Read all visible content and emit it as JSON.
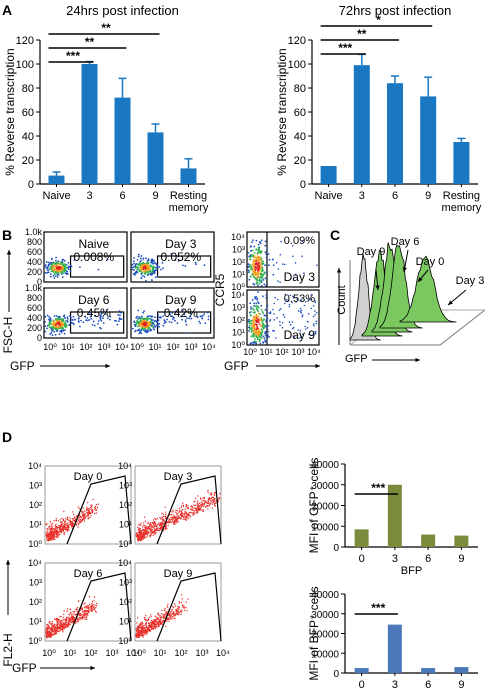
{
  "panels": {
    "A": "A",
    "B": "B",
    "C": "C",
    "D": "D"
  },
  "chart_data": [
    {
      "id": "A1",
      "type": "bar",
      "title": "24hrs post infection",
      "ylabel": "% Reverse transcription",
      "categories": [
        "Naive",
        "3",
        "6",
        "9",
        "Resting memory"
      ],
      "category_lines": [
        [
          "Naive"
        ],
        [
          "3"
        ],
        [
          "6"
        ],
        [
          "9"
        ],
        [
          "Resting",
          "memory"
        ]
      ],
      "values": [
        7,
        100,
        72,
        43,
        13
      ],
      "errors": [
        3,
        2,
        16,
        7,
        8
      ],
      "ylim": [
        0,
        120
      ],
      "yticks": [
        "0",
        "20",
        "40",
        "60",
        "80",
        "100",
        "120"
      ],
      "color": "#1a78c2",
      "significance": [
        {
          "from": 0,
          "to": 1,
          "label": "***"
        },
        {
          "from": 0,
          "to": 2,
          "label": "**"
        },
        {
          "from": 0,
          "to": 3,
          "label": "**"
        }
      ]
    },
    {
      "id": "A2",
      "type": "bar",
      "title": "72hrs post infection",
      "ylabel": "% Reverse transcription",
      "categories": [
        "Naive",
        "3",
        "6",
        "9",
        "Resting memory"
      ],
      "category_lines": [
        [
          "Naive"
        ],
        [
          "3"
        ],
        [
          "6"
        ],
        [
          "9"
        ],
        [
          "Resting",
          "memory"
        ]
      ],
      "values": [
        15,
        99,
        84,
        73,
        35
      ],
      "errors": [
        0,
        9,
        6,
        16,
        3
      ],
      "ylim": [
        0,
        120
      ],
      "yticks": [
        "0",
        "20",
        "40",
        "60",
        "80",
        "100",
        "120"
      ],
      "color": "#1a78c2",
      "significance": [
        {
          "from": 0,
          "to": 1,
          "label": "***"
        },
        {
          "from": 0,
          "to": 2,
          "label": "**"
        },
        {
          "from": 0,
          "to": 3,
          "label": "*"
        }
      ]
    },
    {
      "id": "B-left",
      "type": "scatter",
      "xlabel": "GFP",
      "ylabel": "FSC-H",
      "yticks": [
        "0",
        "200",
        "400",
        "600",
        "800",
        "1.0k"
      ],
      "xticks": [
        "10⁰",
        "10¹",
        "10²",
        "10³",
        "10⁴"
      ],
      "plots": [
        {
          "label": "Naive",
          "percent": "0.008%"
        },
        {
          "label": "Day 3",
          "percent": "0.052%"
        },
        {
          "label": "Day 6",
          "percent": "0.45%"
        },
        {
          "label": "Day 9",
          "percent": "0.42%"
        }
      ]
    },
    {
      "id": "B-right",
      "type": "scatter",
      "xlabel": "GFP",
      "ylabel": "CCR5",
      "yticks": [
        "10⁰",
        "10¹",
        "10²",
        "10³",
        "10⁴"
      ],
      "xticks": [
        "10⁰",
        "10¹",
        "10²",
        "10³",
        "10⁴"
      ],
      "plots": [
        {
          "label": "Day 3",
          "percent": "0.09%"
        },
        {
          "label": "Day 9",
          "percent": "0.53%"
        }
      ]
    },
    {
      "id": "C",
      "type": "area",
      "xlabel": "GFP",
      "ylabel": "Count",
      "labels": [
        "Day 9",
        "Day 6",
        "Day 0",
        "Day 3"
      ]
    },
    {
      "id": "D-left",
      "type": "scatter",
      "xlabel": "GFP",
      "ylabel": "FL2-H",
      "yticks": [
        "10⁰",
        "10¹",
        "10²",
        "10³",
        "10⁴"
      ],
      "xticks": [
        "10⁰",
        "10¹",
        "10²",
        "10³",
        "10⁴"
      ],
      "plots": [
        {
          "label": "Day 0"
        },
        {
          "label": "Day 3"
        },
        {
          "label": "Day 6"
        },
        {
          "label": "Day 9"
        }
      ]
    },
    {
      "id": "D1",
      "type": "bar",
      "title": "",
      "ylabel": "MFI of GFP⁺ cells",
      "categories": [
        "0",
        "3",
        "6",
        "9"
      ],
      "values": [
        8500,
        30000,
        6000,
        5500
      ],
      "ylim": [
        0,
        40000
      ],
      "yticks": [
        "0",
        "10000",
        "20000",
        "30000",
        "40000"
      ],
      "color": "#7a8c3c",
      "significance": [
        {
          "from": 0,
          "to": 1,
          "label": "***"
        }
      ]
    },
    {
      "id": "D2",
      "type": "bar",
      "title": "BFP",
      "ylabel": "MFI of BFP⁺ cells",
      "categories": [
        "0",
        "3",
        "6",
        "9"
      ],
      "values": [
        2500,
        24500,
        2500,
        3000
      ],
      "ylim": [
        0,
        40000
      ],
      "yticks": [
        "0",
        "10000",
        "20000",
        "30000",
        "40000"
      ],
      "color": "#4a78b8",
      "significance": [
        {
          "from": 0,
          "to": 1,
          "label": "***"
        }
      ]
    }
  ]
}
